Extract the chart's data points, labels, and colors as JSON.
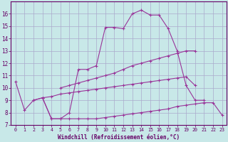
{
  "background_color": "#c8e8e8",
  "grid_color": "#aaaacc",
  "line_color": "#993399",
  "xlabel": "Windchill (Refroidissement éolien,°C)",
  "ylim": [
    7,
    17
  ],
  "xlim": [
    -0.5,
    23.5
  ],
  "yticks": [
    7,
    8,
    9,
    10,
    11,
    12,
    13,
    14,
    15,
    16
  ],
  "xticks": [
    0,
    1,
    2,
    3,
    4,
    5,
    6,
    7,
    8,
    9,
    10,
    11,
    12,
    13,
    14,
    15,
    16,
    17,
    18,
    19,
    20,
    21,
    22,
    23
  ],
  "line1_x": [
    0,
    1,
    2,
    3,
    4,
    5,
    6,
    7,
    8,
    9,
    10,
    11,
    12,
    13,
    14,
    15,
    16,
    17,
    18,
    19,
    20,
    21
  ],
  "line1_y": [
    10.5,
    8.2,
    9.0,
    9.2,
    7.5,
    7.5,
    8.0,
    11.5,
    11.5,
    11.8,
    14.9,
    14.9,
    14.8,
    16.0,
    16.3,
    15.9,
    15.9,
    14.8,
    13.0,
    10.2,
    9.0,
    9.0
  ],
  "line2_x": [
    3,
    4,
    5,
    6,
    7,
    8,
    9,
    10,
    11,
    12,
    13,
    14,
    15,
    16,
    17,
    18,
    19,
    20,
    21,
    22,
    23
  ],
  "line2_y": [
    9.2,
    7.5,
    7.5,
    7.5,
    7.5,
    7.5,
    7.5,
    7.6,
    7.7,
    7.8,
    7.9,
    8.0,
    8.1,
    8.2,
    8.3,
    8.5,
    8.6,
    8.7,
    8.8,
    8.8,
    7.8
  ],
  "line3_x": [
    2,
    3,
    4,
    5,
    6,
    7,
    8,
    9,
    10,
    11,
    12,
    13,
    14,
    15,
    16,
    17,
    18,
    19,
    20
  ],
  "line3_y": [
    9.0,
    9.2,
    9.3,
    9.5,
    9.6,
    9.7,
    9.8,
    9.9,
    10.0,
    10.1,
    10.2,
    10.3,
    10.4,
    10.5,
    10.6,
    10.7,
    10.8,
    10.9,
    10.2
  ],
  "line4_x": [
    5,
    6,
    7,
    8,
    9,
    10,
    11,
    12,
    13,
    14,
    15,
    16,
    17,
    18,
    19,
    20
  ],
  "line4_y": [
    10.0,
    10.2,
    10.4,
    10.6,
    10.8,
    11.0,
    11.2,
    11.5,
    11.8,
    12.0,
    12.2,
    12.4,
    12.6,
    12.8,
    13.0,
    13.0
  ]
}
